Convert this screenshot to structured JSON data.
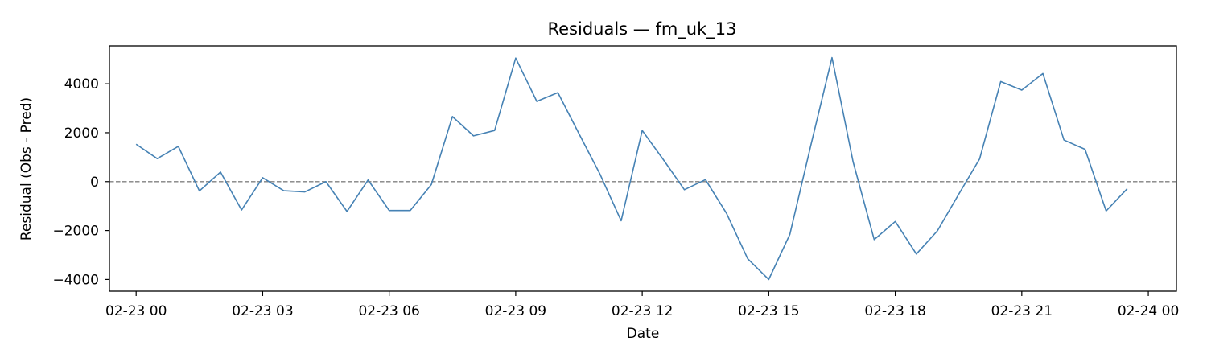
{
  "chart_data": {
    "type": "line",
    "title": "Residuals — fm_uk_13",
    "xlabel": "Date",
    "ylabel": "Residual (Obs - Pred)",
    "x_ticks": [
      "02-23 00",
      "02-23 03",
      "02-23 06",
      "02-23 09",
      "02-23 12",
      "02-23 15",
      "02-23 18",
      "02-23 21",
      "02-24 00"
    ],
    "y_ticks": [
      -4000,
      -2000,
      0,
      2000,
      4000
    ],
    "y_tick_labels": [
      "−4000",
      "−2000",
      "0",
      "2000",
      "4000"
    ],
    "xlim": [
      "2023-02-22 23:22",
      "2023-02-24 00:40"
    ],
    "ylim": [
      -4480,
      5550
    ],
    "reference_line": {
      "y": 0,
      "style": "dashed",
      "color": "#808080"
    },
    "grid": false,
    "series": [
      {
        "color": "#4682b4",
        "x": [
          "2023-02-23 00:00",
          "2023-02-23 00:30",
          "2023-02-23 01:00",
          "2023-02-23 01:30",
          "2023-02-23 02:00",
          "2023-02-23 02:30",
          "2023-02-23 03:00",
          "2023-02-23 03:30",
          "2023-02-23 04:00",
          "2023-02-23 04:30",
          "2023-02-23 05:00",
          "2023-02-23 05:30",
          "2023-02-23 06:00",
          "2023-02-23 06:30",
          "2023-02-23 07:00",
          "2023-02-23 07:30",
          "2023-02-23 08:00",
          "2023-02-23 08:30",
          "2023-02-23 09:00",
          "2023-02-23 09:30",
          "2023-02-23 10:00",
          "2023-02-23 10:30",
          "2023-02-23 11:00",
          "2023-02-23 11:30",
          "2023-02-23 12:00",
          "2023-02-23 12:30",
          "2023-02-23 13:00",
          "2023-02-23 13:30",
          "2023-02-23 14:00",
          "2023-02-23 14:30",
          "2023-02-23 15:00",
          "2023-02-23 15:30",
          "2023-02-23 16:00",
          "2023-02-23 16:30",
          "2023-02-23 17:00",
          "2023-02-23 17:30",
          "2023-02-23 18:00",
          "2023-02-23 18:30",
          "2023-02-23 19:00",
          "2023-02-23 19:30",
          "2023-02-23 20:00",
          "2023-02-23 20:30",
          "2023-02-23 21:00",
          "2023-02-23 21:30",
          "2023-02-23 22:00",
          "2023-02-23 22:30",
          "2023-02-23 23:00",
          "2023-02-23 23:30"
        ],
        "values": [
          1530,
          940,
          1440,
          -380,
          390,
          -1160,
          160,
          -370,
          -420,
          0,
          -1220,
          70,
          -1180,
          -1180,
          -120,
          2660,
          1870,
          2090,
          5050,
          3280,
          3640,
          1960,
          300,
          -1600,
          2090,
          900,
          -330,
          80,
          -1300,
          -3150,
          -4000,
          -2160,
          1500,
          5070,
          810,
          -2370,
          -1630,
          -2960,
          -2010,
          -530,
          930,
          4090,
          3740,
          4420,
          1700,
          1320,
          -1200,
          -290
        ]
      }
    ]
  }
}
